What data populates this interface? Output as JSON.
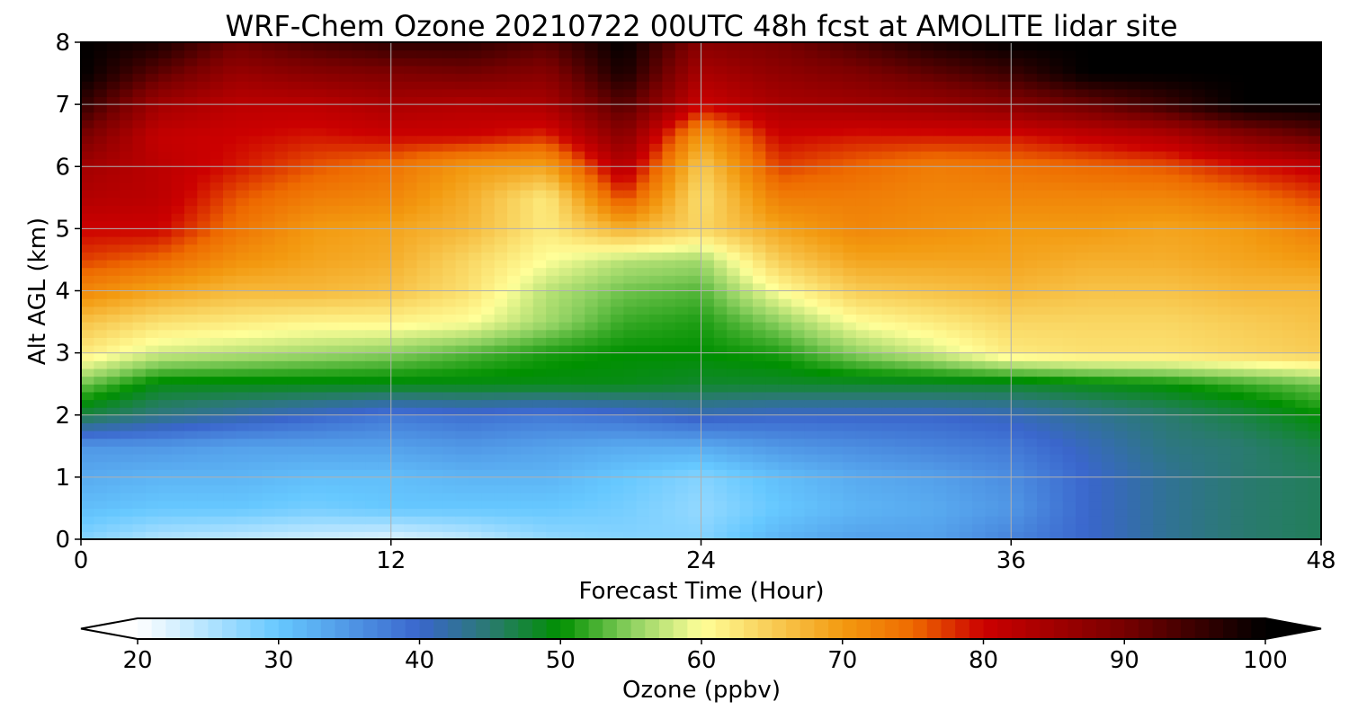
{
  "chart_data": {
    "type": "heatmap",
    "title": "WRF-Chem Ozone  20210722 00UTC 48h fcst at AMOLITE lidar site",
    "xlabel": "Forecast Time (Hour)",
    "ylabel": "Alt AGL (km)",
    "xlim": [
      0,
      48
    ],
    "ylim": [
      0,
      8
    ],
    "xticks": [
      0,
      12,
      24,
      36,
      48
    ],
    "yticks": [
      0,
      1,
      2,
      3,
      4,
      5,
      6,
      7,
      8
    ],
    "grid": true,
    "x": [
      0,
      3,
      6,
      9,
      12,
      15,
      18,
      21,
      24,
      27,
      30,
      33,
      36,
      39,
      42,
      45,
      48
    ],
    "y": [
      0,
      0.5,
      1,
      1.5,
      2,
      2.5,
      3,
      3.5,
      4,
      4.5,
      5,
      5.5,
      6,
      6.5,
      7,
      7.5,
      8
    ],
    "z": [
      [
        28,
        25,
        24,
        23,
        22,
        24,
        27,
        28,
        28,
        32,
        34,
        34,
        37,
        40,
        43,
        45,
        46
      ],
      [
        31,
        30,
        30,
        29,
        30,
        30,
        30,
        29,
        27,
        30,
        32,
        33,
        35,
        40,
        43,
        45,
        46
      ],
      [
        33,
        32,
        32,
        31,
        31,
        32,
        32,
        30,
        28,
        31,
        33,
        34,
        36,
        40,
        43,
        45,
        46
      ],
      [
        35,
        35,
        34,
        34,
        34,
        35,
        34,
        33,
        33,
        35,
        36,
        37,
        38,
        41,
        44,
        45,
        47
      ],
      [
        47,
        44,
        42,
        40,
        38,
        39,
        38,
        39,
        41,
        40,
        40,
        40,
        41,
        43,
        45,
        47,
        50
      ],
      [
        54,
        49,
        49,
        49,
        49,
        49,
        49,
        49,
        48,
        48,
        48,
        48,
        48,
        49,
        50,
        52,
        54
      ],
      [
        62,
        58,
        57,
        56,
        55,
        53,
        51,
        50,
        50,
        51,
        55,
        58,
        62,
        63,
        63,
        64,
        65
      ],
      [
        66,
        63,
        62,
        61,
        61,
        60,
        56,
        52,
        51,
        55,
        60,
        62,
        64,
        64,
        64,
        65,
        66
      ],
      [
        72,
        69,
        67,
        67,
        66,
        63,
        57,
        54,
        53,
        60,
        65,
        66,
        67,
        66,
        66,
        67,
        67
      ],
      [
        77,
        75,
        71,
        69,
        68,
        64,
        60,
        57,
        56,
        65,
        69,
        69,
        69,
        68,
        68,
        69,
        70
      ],
      [
        80,
        80,
        74,
        70,
        69,
        67,
        62,
        68,
        64,
        69,
        72,
        71,
        70,
        70,
        69,
        70,
        73
      ],
      [
        83,
        82,
        76,
        73,
        72,
        68,
        62,
        77,
        63,
        73,
        73,
        72,
        72,
        72,
        72,
        74,
        77
      ],
      [
        85,
        82,
        79,
        76,
        74,
        70,
        69,
        83,
        65,
        77,
        75,
        73,
        74,
        75,
        76,
        79,
        81
      ],
      [
        90,
        81,
        80,
        79,
        80,
        80,
        78,
        88,
        70,
        80,
        79,
        79,
        79,
        81,
        83,
        88,
        92
      ],
      [
        96,
        85,
        82,
        82,
        84,
        83,
        84,
        93,
        80,
        84,
        85,
        86,
        88,
        91,
        95,
        100,
        100
      ],
      [
        100,
        92,
        86,
        88,
        89,
        90,
        88,
        98,
        84,
        87,
        89,
        92,
        95,
        100,
        100,
        100,
        100
      ],
      [
        100,
        98,
        91,
        94,
        96,
        96,
        93,
        100,
        88,
        90,
        94,
        98,
        100,
        100,
        100,
        100,
        100
      ]
    ],
    "colorbar": {
      "label": "Ozone  (ppbv)",
      "min": 20,
      "max": 100,
      "ticks": [
        20,
        30,
        40,
        50,
        60,
        70,
        80,
        90,
        100
      ],
      "extend": "both",
      "under_color": "#ffffff",
      "over_color": "#000000",
      "anchors": [
        {
          "v": 20,
          "c": "#ffffff"
        },
        {
          "v": 30,
          "c": "#66c8ff"
        },
        {
          "v": 40,
          "c": "#3a66cc"
        },
        {
          "v": 45,
          "c": "#2a7a70"
        },
        {
          "v": 50,
          "c": "#009000"
        },
        {
          "v": 55,
          "c": "#8cd060"
        },
        {
          "v": 60,
          "c": "#ffff99"
        },
        {
          "v": 65,
          "c": "#f8cc55"
        },
        {
          "v": 70,
          "c": "#f39a10"
        },
        {
          "v": 75,
          "c": "#ee6a00"
        },
        {
          "v": 80,
          "c": "#cc0000"
        },
        {
          "v": 90,
          "c": "#770000"
        },
        {
          "v": 100,
          "c": "#000000"
        }
      ]
    }
  }
}
